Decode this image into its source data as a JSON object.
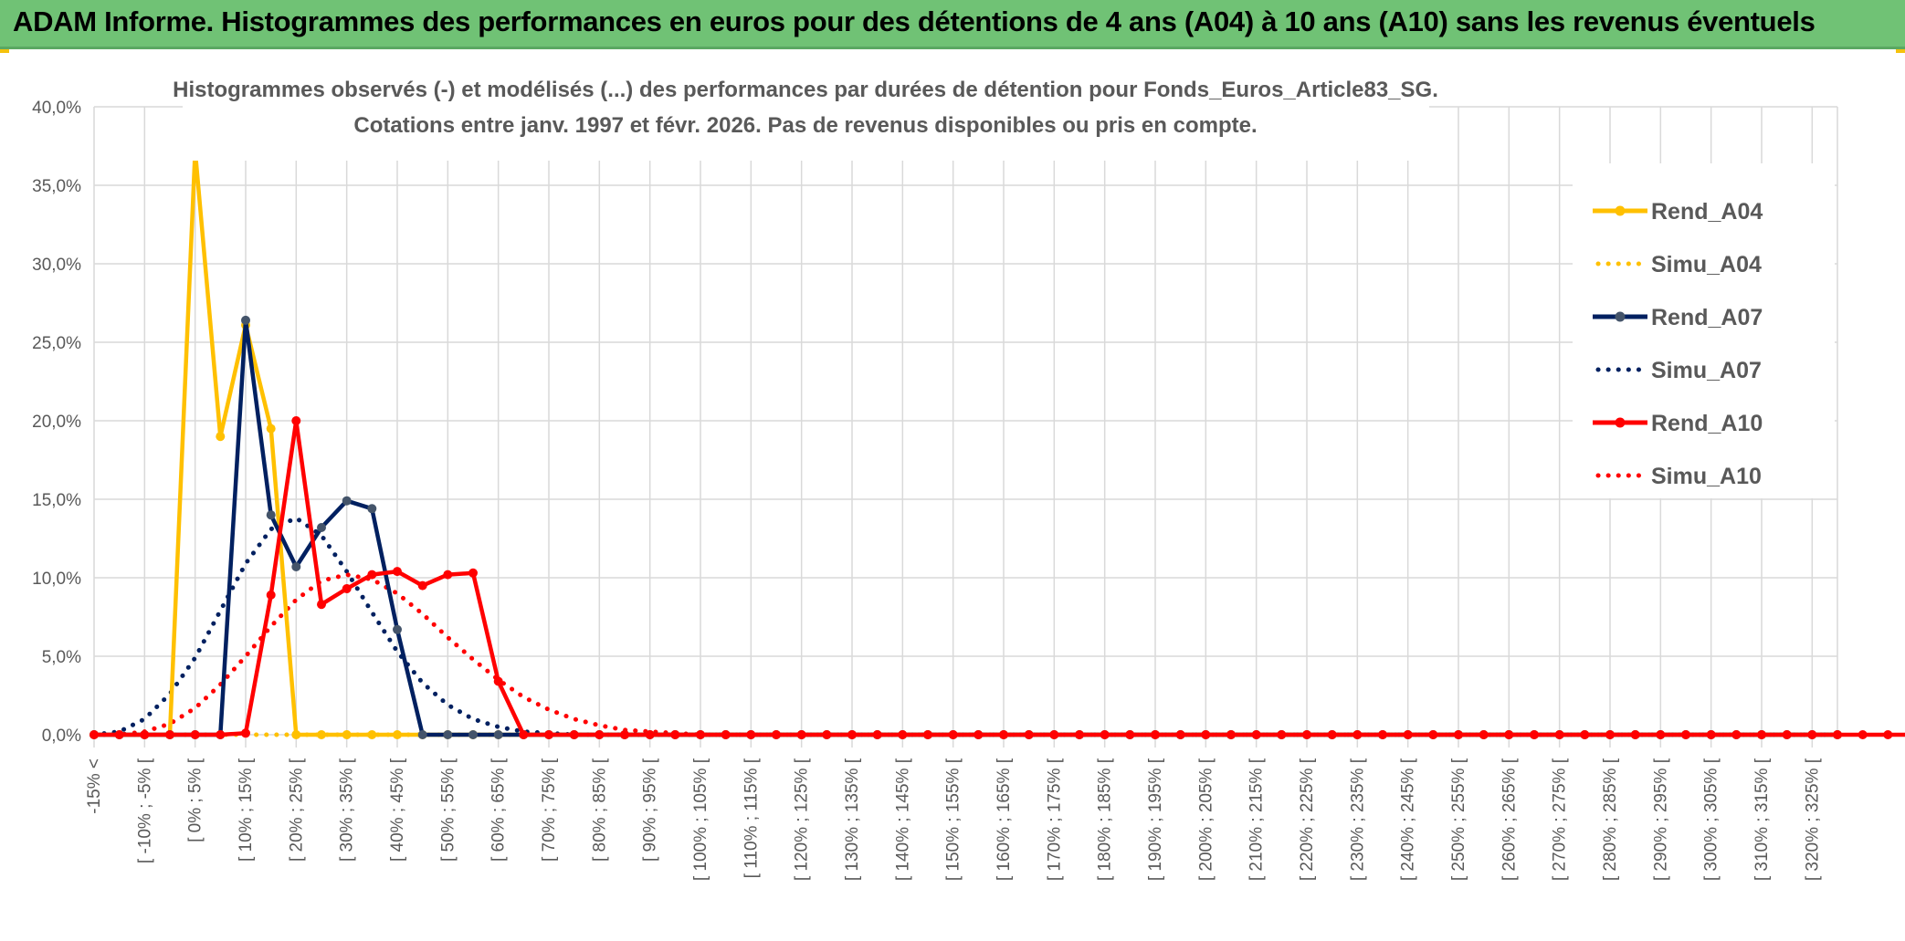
{
  "header": {
    "title": "ADAM Informe. Histogrammes des performances en euros pour des détentions de 4 ans (A04) à 10 ans (A10) sans les revenus éventuels"
  },
  "colors": {
    "header_bg": "#70c275",
    "yellow": "#ffc000",
    "navy": "#002060",
    "red": "#ff0000",
    "marker_gray": "#44546a"
  },
  "chart_data": {
    "type": "line",
    "title_line1": "Histogrammes observés (-) et modélisés (...) des performances par durées de détention pour Fonds_Euros_Article83_SG.",
    "title_line2": "Cotations entre janv. 1997 et févr. 2026. Pas de revenus disponibles ou pris en compte.",
    "ylim": [
      0,
      40
    ],
    "ytick_step": 5,
    "ytick_labels": [
      "0,0%",
      "5,0%",
      "10,0%",
      "15,0%",
      "20,0%",
      "25,0%",
      "30,0%",
      "35,0%",
      "40,0%"
    ],
    "grid": true,
    "legend_position": "right",
    "x_labels": [
      "-15% <",
      "[ -10% ; -5% [",
      "[ 0% ; 5% [",
      "[ 10% ; 15% [",
      "[ 20% ; 25% [",
      "[ 30% ; 35% [",
      "[ 40% ; 45% [",
      "[ 50% ; 55% [",
      "[ 60% ; 65% [",
      "[ 70% ; 75% [",
      "[ 80% ; 85% [",
      "[ 90% ; 95% [",
      "[ 100% ; 105% [",
      "[ 110% ; 115% [",
      "[ 120% ; 125% [",
      "[ 130% ; 135% [",
      "[ 140% ; 145% [",
      "[ 150% ; 155% [",
      "[ 160% ; 165% [",
      "[ 170% ; 175% [",
      "[ 180% ; 185% [",
      "[ 190% ; 195% [",
      "[ 200% ; 205% [",
      "[ 210% ; 215% [",
      "[ 220% ; 225% [",
      "[ 230% ; 235% [",
      "[ 240% ; 245% [",
      "[ 250% ; 255% [",
      "[ 260% ; 265% [",
      "[ 270% ; 275% [",
      "[ 280% ; 285% [",
      "[ 290% ; 295% [",
      "[ 300% ; 305% [",
      "[ 310% ; 315% [",
      "[ 320% ; 325% ["
    ],
    "series": [
      {
        "name": "Rend_A04",
        "style": "solid",
        "color": "#ffc000",
        "marker_color": "#ffc000",
        "values": [
          0,
          0,
          0,
          0,
          37.2,
          19.0,
          26.1,
          19.5,
          0,
          0,
          0,
          0,
          0,
          0,
          0,
          0,
          0,
          0,
          0,
          0,
          0,
          0,
          0,
          0,
          0,
          0,
          0,
          0,
          0,
          0,
          0,
          0,
          0,
          0,
          0,
          0,
          0,
          0,
          0,
          0,
          0,
          0,
          0,
          0,
          0,
          0,
          0,
          0,
          0,
          0,
          0,
          0,
          0,
          0,
          0,
          0,
          0,
          0,
          0,
          0,
          0,
          0,
          0,
          0,
          0,
          0,
          0,
          0,
          0,
          0
        ]
      },
      {
        "name": "Simu_A04",
        "style": "dotted",
        "color": "#ffc000",
        "values": [
          0,
          0,
          0,
          0,
          0,
          0,
          0,
          0,
          0,
          0,
          0,
          0,
          0,
          0,
          0,
          0,
          0,
          0,
          0,
          0,
          0,
          0,
          0,
          0,
          0,
          0,
          0,
          0,
          0,
          0,
          0,
          0,
          0,
          0,
          0,
          0,
          0,
          0,
          0,
          0,
          0,
          0,
          0,
          0,
          0,
          0,
          0,
          0,
          0,
          0,
          0,
          0,
          0,
          0,
          0,
          0,
          0,
          0,
          0,
          0,
          0,
          0,
          0,
          0,
          0,
          0,
          0,
          0,
          0,
          0
        ]
      },
      {
        "name": "Rend_A07",
        "style": "solid",
        "color": "#002060",
        "marker_color": "#44546a",
        "values": [
          0,
          0,
          0,
          0,
          0,
          0,
          26.4,
          14.0,
          10.7,
          13.2,
          14.9,
          14.4,
          6.7,
          0,
          0,
          0,
          0,
          0,
          0,
          0,
          0,
          0,
          0,
          0,
          0,
          0,
          0,
          0,
          0,
          0,
          0,
          0,
          0,
          0,
          0,
          0,
          0,
          0,
          0,
          0,
          0,
          0,
          0,
          0,
          0,
          0,
          0,
          0,
          0,
          0,
          0,
          0,
          0,
          0,
          0,
          0,
          0,
          0,
          0,
          0,
          0,
          0,
          0,
          0,
          0,
          0,
          0,
          0,
          0,
          0
        ]
      },
      {
        "name": "Simu_A07",
        "style": "dotted",
        "color": "#002060",
        "values": [
          0,
          0.2,
          1.0,
          2.6,
          4.9,
          7.9,
          10.9,
          13.1,
          13.8,
          12.7,
          10.4,
          7.8,
          5.3,
          3.3,
          1.9,
          1.0,
          0.5,
          0.2,
          0.1,
          0,
          0,
          0,
          0,
          0,
          0,
          0,
          0,
          0,
          0,
          0,
          0,
          0,
          0,
          0,
          0,
          0,
          0,
          0,
          0,
          0,
          0,
          0,
          0,
          0,
          0,
          0,
          0,
          0,
          0,
          0,
          0,
          0,
          0,
          0,
          0,
          0,
          0,
          0,
          0,
          0,
          0,
          0,
          0,
          0,
          0,
          0,
          0,
          0,
          0,
          0
        ]
      },
      {
        "name": "Rend_A10",
        "style": "solid",
        "color": "#ff0000",
        "marker_color": "#ff0000",
        "values": [
          0,
          0,
          0,
          0,
          0,
          0,
          0.1,
          8.9,
          20.0,
          8.3,
          9.3,
          10.2,
          10.4,
          9.5,
          10.2,
          10.3,
          3.4,
          0,
          0,
          0,
          0,
          0,
          0,
          0,
          0,
          0,
          0,
          0,
          0,
          0,
          0,
          0,
          0,
          0,
          0,
          0,
          0,
          0,
          0,
          0,
          0,
          0,
          0,
          0,
          0,
          0,
          0,
          0,
          0,
          0,
          0,
          0,
          0,
          0,
          0,
          0,
          0,
          0,
          0,
          0,
          0,
          0,
          0,
          0,
          0,
          0,
          0,
          0,
          0,
          0,
          0,
          0,
          0
        ]
      },
      {
        "name": "Simu_A10",
        "style": "dotted",
        "color": "#ff0000",
        "values": [
          0,
          0,
          0.2,
          0.7,
          1.7,
          3.2,
          5.0,
          6.9,
          8.6,
          9.8,
          10.2,
          9.9,
          9.0,
          7.7,
          6.2,
          4.8,
          3.5,
          2.4,
          1.6,
          1.0,
          0.6,
          0.3,
          0.2,
          0.1,
          0,
          0,
          0,
          0,
          0,
          0,
          0,
          0,
          0,
          0,
          0,
          0,
          0,
          0,
          0,
          0,
          0,
          0,
          0,
          0,
          0,
          0,
          0,
          0,
          0,
          0,
          0,
          0,
          0,
          0,
          0,
          0,
          0,
          0,
          0,
          0,
          0,
          0,
          0,
          0,
          0,
          0,
          0,
          0,
          0,
          0
        ]
      }
    ]
  }
}
